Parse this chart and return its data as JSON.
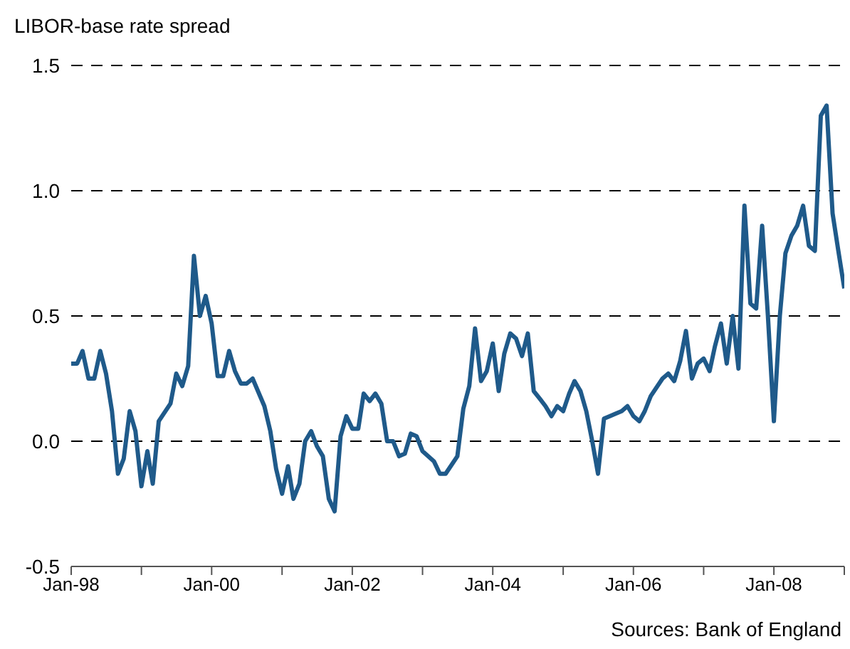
{
  "chart_data": {
    "type": "line",
    "title": "LIBOR-base rate spread",
    "annotations": [
      "Sources: Bank of England"
    ],
    "x": [
      "1998-01",
      "1998-02",
      "1998-03",
      "1998-04",
      "1998-05",
      "1998-06",
      "1998-07",
      "1998-08",
      "1998-09",
      "1998-10",
      "1998-11",
      "1998-12",
      "1999-01",
      "1999-02",
      "1999-03",
      "1999-04",
      "1999-06",
      "1999-07",
      "1999-08",
      "1999-09",
      "1999-10",
      "1999-11",
      "1999-12",
      "2000-01",
      "2000-02",
      "2000-03",
      "2000-04",
      "2000-05",
      "2000-06",
      "2000-07",
      "2000-08",
      "2000-10",
      "2000-11",
      "2000-12",
      "2001-01",
      "2001-02",
      "2001-03",
      "2001-04",
      "2001-05",
      "2001-06",
      "2001-07",
      "2001-08",
      "2001-09",
      "2001-10",
      "2001-11",
      "2001-12",
      "2002-01",
      "2002-02",
      "2002-03",
      "2002-04",
      "2002-05",
      "2002-06",
      "2002-07",
      "2002-08",
      "2002-09",
      "2002-10",
      "2002-11",
      "2002-12",
      "2003-01",
      "2003-03",
      "2003-04",
      "2003-05",
      "2003-07",
      "2003-08",
      "2003-09",
      "2003-10",
      "2003-11",
      "2003-12",
      "2004-01",
      "2004-02",
      "2004-03",
      "2004-04",
      "2004-05",
      "2004-06",
      "2004-07",
      "2004-08",
      "2004-09",
      "2004-10",
      "2004-11",
      "2004-12",
      "2005-01",
      "2005-02",
      "2005-03",
      "2005-04",
      "2005-05",
      "2005-06",
      "2005-07",
      "2005-08",
      "2005-09",
      "2005-10",
      "2005-11",
      "2005-12",
      "2006-01",
      "2006-02",
      "2006-03",
      "2006-04",
      "2006-06",
      "2006-07",
      "2006-08",
      "2006-09",
      "2006-10",
      "2006-11",
      "2006-12",
      "2007-01",
      "2007-02",
      "2007-03",
      "2007-04",
      "2007-05",
      "2007-06",
      "2007-07",
      "2007-08",
      "2007-09",
      "2007-10",
      "2007-11",
      "2007-12",
      "2008-01",
      "2008-02",
      "2008-03",
      "2008-04",
      "2008-05",
      "2008-06",
      "2008-07",
      "2008-08",
      "2008-09",
      "2008-10",
      "2008-11",
      "2008-12",
      "2009-01"
    ],
    "series": [
      {
        "color": "#1f5a8a",
        "values": [
          0.31,
          0.31,
          0.36,
          0.25,
          0.25,
          0.36,
          0.27,
          0.12,
          -0.13,
          -0.07,
          0.12,
          0.04,
          -0.18,
          -0.04,
          -0.17,
          0.08,
          0.15,
          0.27,
          0.22,
          0.3,
          0.74,
          0.5,
          0.58,
          0.47,
          0.26,
          0.26,
          0.36,
          0.28,
          0.23,
          0.23,
          0.25,
          0.14,
          0.04,
          -0.11,
          -0.21,
          -0.1,
          -0.23,
          -0.17,
          0.0,
          0.04,
          -0.02,
          -0.06,
          -0.23,
          -0.28,
          0.02,
          0.1,
          0.05,
          0.05,
          0.19,
          0.16,
          0.19,
          0.15,
          0.0,
          0.0,
          -0.06,
          -0.05,
          0.03,
          0.02,
          -0.04,
          -0.08,
          -0.13,
          -0.13,
          -0.06,
          0.13,
          0.22,
          0.45,
          0.24,
          0.28,
          0.39,
          0.2,
          0.35,
          0.43,
          0.41,
          0.34,
          0.43,
          0.2,
          0.17,
          0.14,
          0.1,
          0.14,
          0.12,
          0.19,
          0.24,
          0.2,
          0.12,
          0.0,
          -0.13,
          0.09,
          0.1,
          0.11,
          0.12,
          0.14,
          0.1,
          0.08,
          0.12,
          0.18,
          0.25,
          0.27,
          0.24,
          0.32,
          0.44,
          0.25,
          0.31,
          0.33,
          0.28,
          0.38,
          0.47,
          0.31,
          0.5,
          0.29,
          0.94,
          0.55,
          0.53,
          0.86,
          0.5,
          0.08,
          0.5,
          0.75,
          0.82,
          0.86,
          0.94,
          0.78,
          0.76,
          1.3,
          1.34,
          0.91,
          0.76,
          0.61
        ]
      }
    ],
    "xlim": [
      "1998-01",
      "2009-01"
    ],
    "xticks": [
      {
        "value": "1998-01",
        "label": "Jan-98"
      },
      {
        "value": "1999-01",
        "label": null
      },
      {
        "value": "2000-01",
        "label": "Jan-00"
      },
      {
        "value": "2001-01",
        "label": null
      },
      {
        "value": "2002-01",
        "label": "Jan-02"
      },
      {
        "value": "2003-01",
        "label": null
      },
      {
        "value": "2004-01",
        "label": "Jan-04"
      },
      {
        "value": "2005-01",
        "label": null
      },
      {
        "value": "2006-01",
        "label": "Jan-06"
      },
      {
        "value": "2007-01",
        "label": null
      },
      {
        "value": "2008-01",
        "label": "Jan-08"
      },
      {
        "value": "2009-01",
        "label": null
      }
    ],
    "ylim": [
      -0.5,
      1.5
    ],
    "yticks": [
      {
        "value": -0.5,
        "label": "-0.5"
      },
      {
        "value": 0,
        "label": "0.0"
      },
      {
        "value": 0.5,
        "label": "0.5"
      },
      {
        "value": 1,
        "label": "1.0"
      },
      {
        "value": 1.5,
        "label": "1.5"
      }
    ],
    "grid": "y",
    "legend": false,
    "marker": "none",
    "line_style": "solid"
  }
}
